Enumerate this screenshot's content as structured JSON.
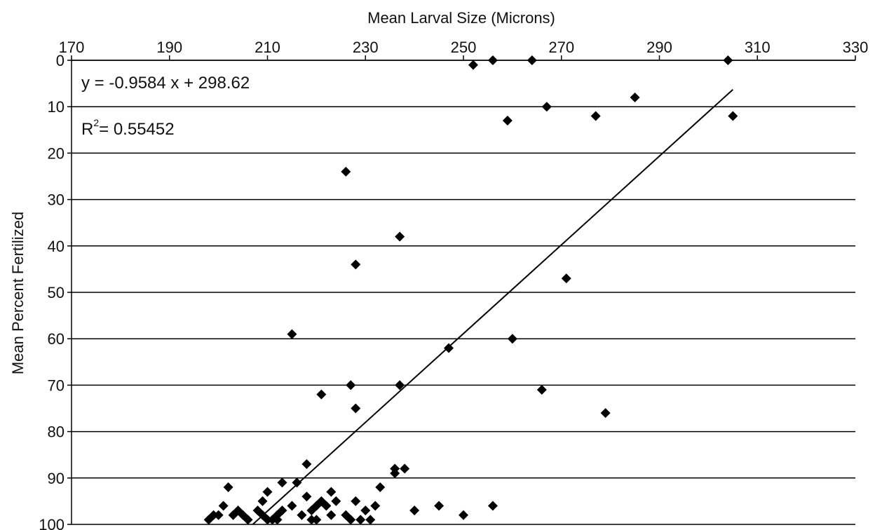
{
  "chart_data": {
    "type": "scatter",
    "xlabel": "Mean Larval Size (Microns)",
    "ylabel": "Mean Percent Fertilized",
    "xlim": [
      170,
      330
    ],
    "ylim": [
      0,
      100
    ],
    "y_axis_inverted": true,
    "x_axis_position": "top",
    "x_ticks": [
      170,
      190,
      210,
      230,
      250,
      270,
      290,
      310,
      330
    ],
    "y_ticks": [
      0,
      10,
      20,
      30,
      40,
      50,
      60,
      70,
      80,
      90,
      100
    ],
    "grid": "horizontal",
    "legend": "none",
    "marker": "diamond",
    "marker_color": "#000000",
    "trendline": {
      "type": "linear",
      "equation": "y = -0.9584 x + 298.62",
      "r_squared_label": "R",
      "r_squared_sup": "2",
      "r_squared_value": "= 0.55452",
      "x_range": [
        207,
        305
      ]
    },
    "points": [
      {
        "x": 252,
        "y": 1
      },
      {
        "x": 256,
        "y": 0
      },
      {
        "x": 264,
        "y": 0
      },
      {
        "x": 304,
        "y": 0
      },
      {
        "x": 267,
        "y": 10
      },
      {
        "x": 259,
        "y": 13
      },
      {
        "x": 277,
        "y": 12
      },
      {
        "x": 285,
        "y": 8
      },
      {
        "x": 305,
        "y": 12
      },
      {
        "x": 226,
        "y": 24
      },
      {
        "x": 237,
        "y": 38
      },
      {
        "x": 228,
        "y": 44
      },
      {
        "x": 271,
        "y": 47
      },
      {
        "x": 215,
        "y": 59
      },
      {
        "x": 247,
        "y": 62
      },
      {
        "x": 260,
        "y": 60
      },
      {
        "x": 227,
        "y": 70
      },
      {
        "x": 237,
        "y": 70
      },
      {
        "x": 266,
        "y": 71
      },
      {
        "x": 221,
        "y": 72
      },
      {
        "x": 228,
        "y": 75
      },
      {
        "x": 279,
        "y": 76
      },
      {
        "x": 218,
        "y": 87
      },
      {
        "x": 238,
        "y": 88
      },
      {
        "x": 236,
        "y": 89
      },
      {
        "x": 236,
        "y": 88
      },
      {
        "x": 213,
        "y": 91
      },
      {
        "x": 216,
        "y": 91
      },
      {
        "x": 233,
        "y": 92
      },
      {
        "x": 202,
        "y": 92
      },
      {
        "x": 210,
        "y": 93
      },
      {
        "x": 223,
        "y": 93
      },
      {
        "x": 218,
        "y": 94
      },
      {
        "x": 221,
        "y": 95
      },
      {
        "x": 209,
        "y": 95
      },
      {
        "x": 224,
        "y": 95
      },
      {
        "x": 228,
        "y": 95
      },
      {
        "x": 256,
        "y": 96
      },
      {
        "x": 215,
        "y": 96
      },
      {
        "x": 201,
        "y": 96
      },
      {
        "x": 220,
        "y": 96
      },
      {
        "x": 204,
        "y": 97
      },
      {
        "x": 222,
        "y": 96
      },
      {
        "x": 232,
        "y": 96
      },
      {
        "x": 245,
        "y": 96
      },
      {
        "x": 240,
        "y": 97
      },
      {
        "x": 213,
        "y": 97
      },
      {
        "x": 208,
        "y": 97
      },
      {
        "x": 219,
        "y": 97
      },
      {
        "x": 230,
        "y": 97
      },
      {
        "x": 223,
        "y": 98
      },
      {
        "x": 203,
        "y": 98
      },
      {
        "x": 209,
        "y": 98
      },
      {
        "x": 199,
        "y": 98
      },
      {
        "x": 200,
        "y": 98
      },
      {
        "x": 212,
        "y": 98
      },
      {
        "x": 217,
        "y": 98
      },
      {
        "x": 226,
        "y": 98
      },
      {
        "x": 250,
        "y": 98
      },
      {
        "x": 205,
        "y": 98
      },
      {
        "x": 198,
        "y": 99
      },
      {
        "x": 206,
        "y": 99
      },
      {
        "x": 210,
        "y": 99
      },
      {
        "x": 212,
        "y": 99
      },
      {
        "x": 219,
        "y": 99
      },
      {
        "x": 220,
        "y": 99
      },
      {
        "x": 227,
        "y": 99
      },
      {
        "x": 231,
        "y": 99
      },
      {
        "x": 211,
        "y": 99
      },
      {
        "x": 229,
        "y": 99
      }
    ]
  }
}
